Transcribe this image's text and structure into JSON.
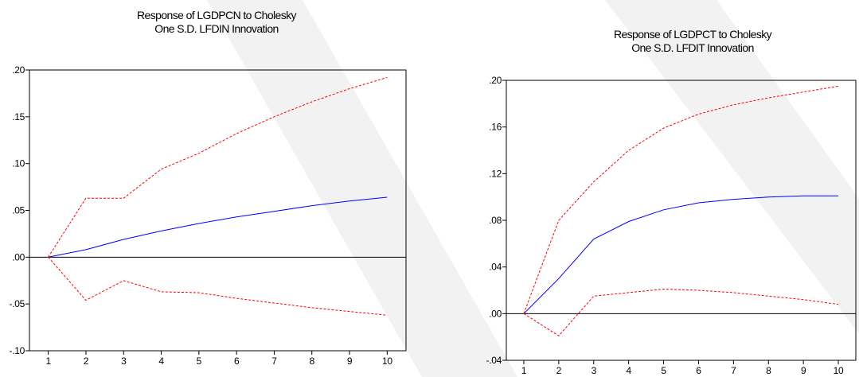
{
  "colors": {
    "impulse_response": "#0000ff",
    "confidence_band": "#ff0000",
    "axis": "#000000",
    "watermark": "#eeeeee"
  },
  "chart_data": [
    {
      "type": "line",
      "title_lines": [
        "Response of LGDPCN to Cholesky",
        "One S.D. LFDIN Innovation"
      ],
      "x": [
        1,
        2,
        3,
        4,
        5,
        6,
        7,
        8,
        9,
        10
      ],
      "x_tick_labels": [
        "1",
        "2",
        "3",
        "4",
        "5",
        "6",
        "7",
        "8",
        "9",
        "10"
      ],
      "y_tick_values": [
        0.2,
        0.15,
        0.1,
        0.05,
        0.0,
        -0.05,
        -0.1
      ],
      "y_tick_labels": [
        ".20",
        ".15",
        ".10",
        ".05",
        ".00",
        "-.05",
        "-.10"
      ],
      "ylim": [
        -0.1,
        0.2
      ],
      "zero_line": true,
      "grid": false,
      "series": [
        {
          "style": "solid",
          "color": "#0000ff",
          "values": [
            0.0,
            0.008,
            0.019,
            0.028,
            0.036,
            0.043,
            0.049,
            0.055,
            0.06,
            0.064
          ]
        },
        {
          "style": "dashed",
          "color": "#ff0000",
          "values": [
            0.0,
            0.063,
            0.063,
            0.094,
            0.111,
            0.132,
            0.15,
            0.166,
            0.18,
            0.192
          ]
        },
        {
          "style": "dashed",
          "color": "#ff0000",
          "values": [
            0.0,
            -0.046,
            -0.025,
            -0.037,
            -0.038,
            -0.044,
            -0.049,
            -0.054,
            -0.058,
            -0.062
          ]
        }
      ]
    },
    {
      "type": "line",
      "title_lines": [
        "Response of LGDPCT to Cholesky",
        "One S.D. LFDIT Innovation"
      ],
      "x": [
        1,
        2,
        3,
        4,
        5,
        6,
        7,
        8,
        9,
        10
      ],
      "x_tick_labels": [
        "1",
        "2",
        "3",
        "4",
        "5",
        "6",
        "7",
        "8",
        "9",
        "10"
      ],
      "y_tick_values": [
        0.2,
        0.16,
        0.12,
        0.08,
        0.04,
        0.0,
        -0.04
      ],
      "y_tick_labels": [
        ".20",
        ".16",
        ".12",
        ".08",
        ".04",
        ".00",
        "-.04"
      ],
      "ylim": [
        -0.04,
        0.2
      ],
      "zero_line": true,
      "grid": false,
      "series": [
        {
          "style": "solid",
          "color": "#0000ff",
          "values": [
            0.0,
            0.03,
            0.064,
            0.079,
            0.089,
            0.095,
            0.098,
            0.1,
            0.101,
            0.101
          ]
        },
        {
          "style": "dashed",
          "color": "#ff0000",
          "values": [
            0.0,
            0.08,
            0.113,
            0.14,
            0.159,
            0.171,
            0.179,
            0.185,
            0.19,
            0.195
          ]
        },
        {
          "style": "dashed",
          "color": "#ff0000",
          "values": [
            0.0,
            -0.019,
            0.015,
            0.018,
            0.021,
            0.02,
            0.018,
            0.015,
            0.012,
            0.008
          ]
        }
      ]
    }
  ]
}
